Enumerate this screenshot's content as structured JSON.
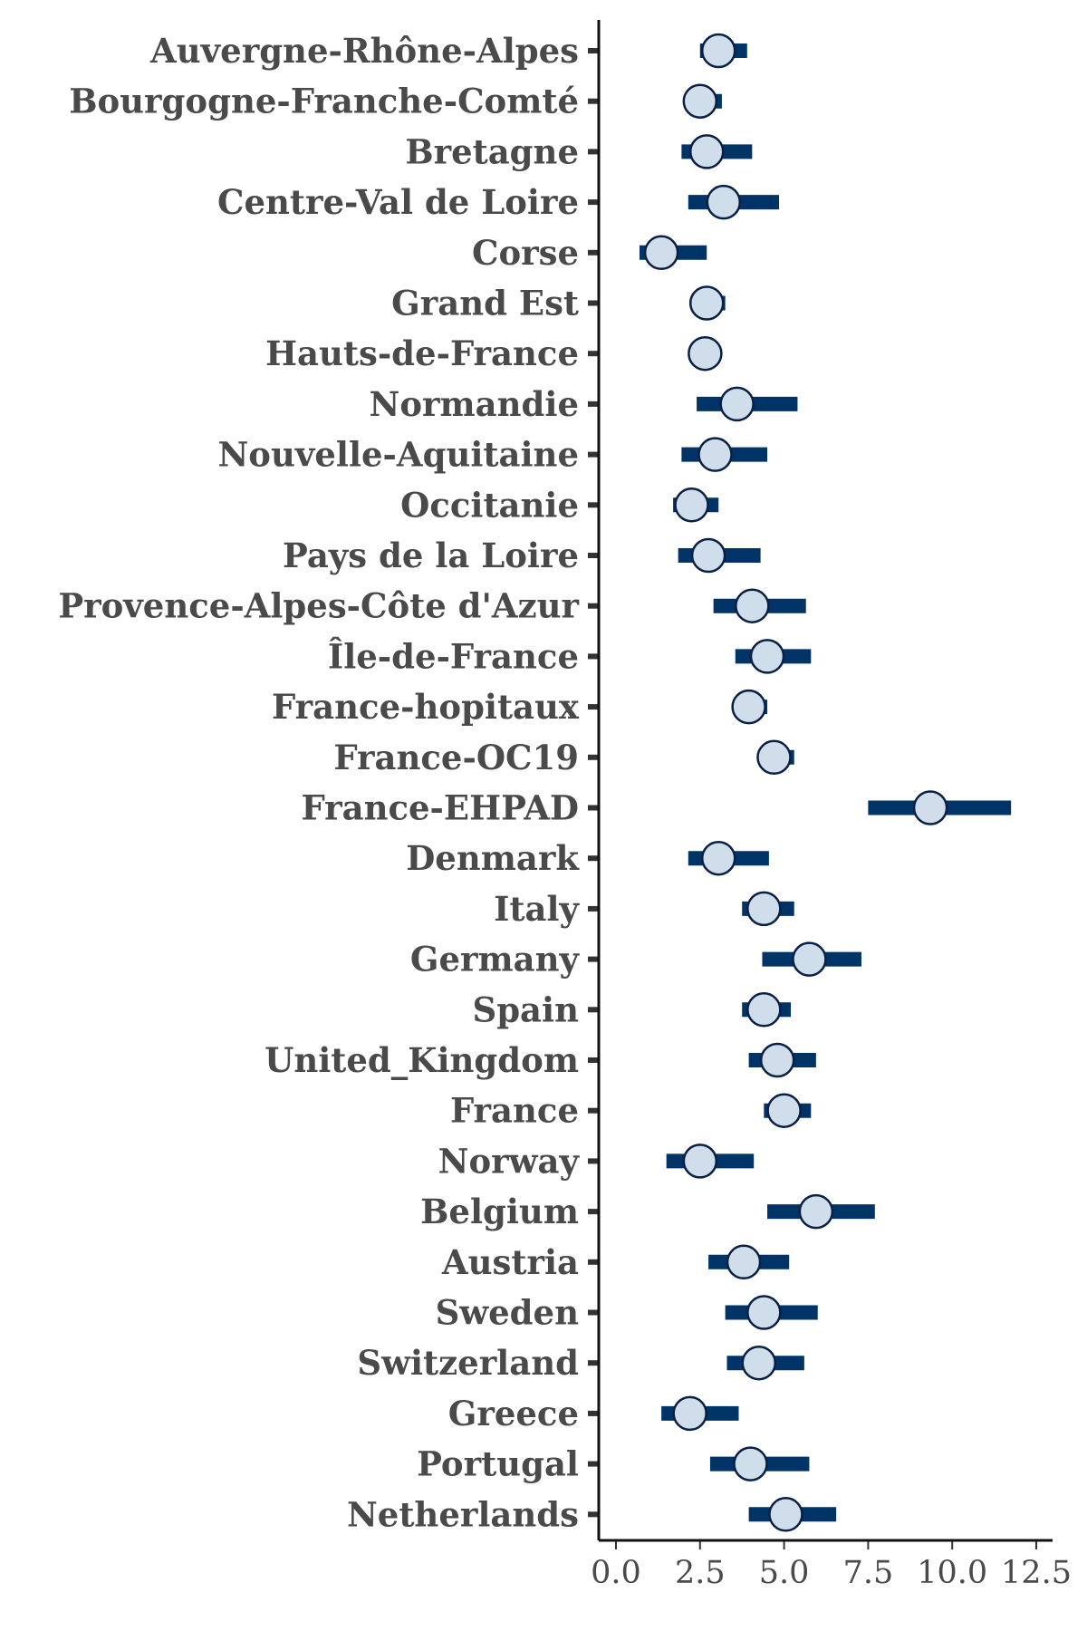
{
  "chart_data": {
    "type": "scatter",
    "subtype": "dot-and-interval",
    "title": "",
    "xlabel": "",
    "ylabel": "",
    "xlim": [
      -0.5,
      12.8
    ],
    "xticks": [
      "0.0",
      "2.5",
      "5.0",
      "7.5",
      "10.0",
      "12.5"
    ],
    "xtick_values": [
      0,
      2.5,
      5.0,
      7.5,
      10.0,
      12.5
    ],
    "grid": false,
    "legend": "none",
    "colors": {
      "interval": "#003366",
      "point_fill": "#cfdeea",
      "point_edge": "#0a1f44",
      "axis": "#111111",
      "text": "#4a4a4a"
    },
    "categories": [
      "Auvergne-Rhône-Alpes",
      "Bourgogne-Franche-Comté",
      "Bretagne",
      "Centre-Val de Loire",
      "Corse",
      "Grand Est",
      "Hauts-de-France",
      "Normandie",
      "Nouvelle-Aquitaine",
      "Occitanie",
      "Pays de la Loire",
      "Provence-Alpes-Côte d'Azur",
      "Île-de-France",
      "France-hopitaux",
      "France-OC19",
      "France-EHPAD",
      "Denmark",
      "Italy",
      "Germany",
      "Spain",
      "United_Kingdom",
      "France",
      "Norway",
      "Belgium",
      "Austria",
      "Sweden",
      "Switzerland",
      "Greece",
      "Portugal",
      "Netherlands"
    ],
    "estimates": [
      3.05,
      2.5,
      2.7,
      3.2,
      1.35,
      2.7,
      2.65,
      3.6,
      2.95,
      2.25,
      2.75,
      4.05,
      4.5,
      3.95,
      4.7,
      9.35,
      3.05,
      4.4,
      5.75,
      4.4,
      4.8,
      5.0,
      2.5,
      5.95,
      3.8,
      4.4,
      4.25,
      2.2,
      4.0,
      5.05
    ],
    "lower": [
      2.5,
      2.05,
      1.95,
      2.15,
      0.7,
      2.35,
      2.35,
      2.4,
      1.95,
      1.7,
      1.85,
      2.9,
      3.55,
      3.55,
      4.25,
      7.5,
      2.15,
      3.75,
      4.35,
      3.75,
      3.95,
      4.4,
      1.5,
      4.5,
      2.75,
      3.25,
      3.3,
      1.35,
      2.8,
      3.95
    ],
    "upper": [
      3.9,
      3.15,
      4.05,
      4.85,
      2.7,
      3.25,
      3.0,
      5.4,
      4.5,
      3.05,
      4.3,
      5.65,
      5.8,
      4.5,
      5.3,
      11.75,
      4.55,
      5.3,
      7.3,
      5.2,
      5.95,
      5.8,
      4.1,
      7.7,
      5.15,
      6.0,
      5.6,
      3.65,
      5.75,
      6.55
    ]
  }
}
